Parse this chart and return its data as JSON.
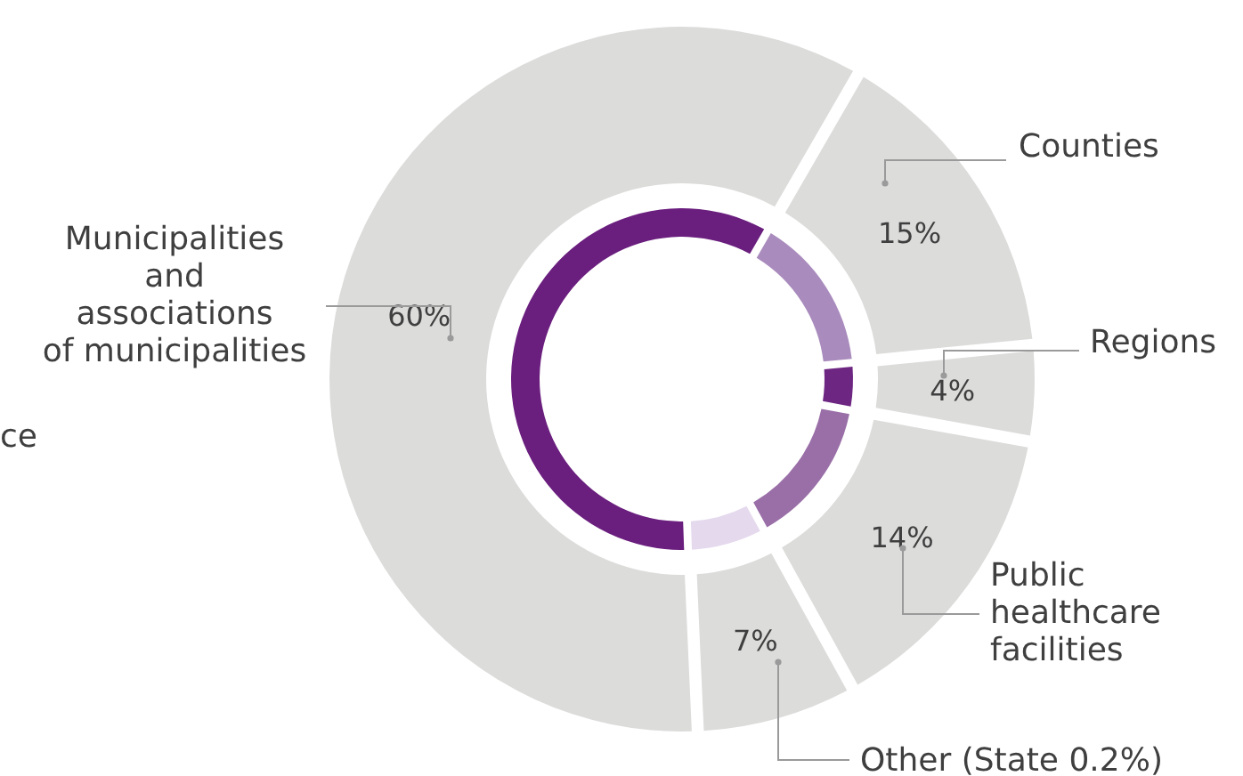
{
  "chart_data": {
    "type": "donut",
    "categories": [
      "Counties",
      "Regions",
      "Public\nhealthcare\nfacilities",
      "Other (State 0.2%)",
      "Municipalities\nand\nassociations\nof municipalities"
    ],
    "series": [
      {
        "color": "#dcdcdb",
        "values": [
          15,
          4,
          14,
          7,
          60
        ],
        "value_labels": [
          "15%",
          "4%",
          "14%",
          "7%",
          "60%"
        ]
      },
      {
        "colors": [
          "#a98bbd",
          "#6d2682",
          "#9a6fa8",
          "#e5d9ee",
          "#6a1e7e"
        ],
        "values": [
          15,
          4,
          14,
          7,
          60
        ]
      }
    ],
    "annotations": [
      "ce"
    ]
  }
}
